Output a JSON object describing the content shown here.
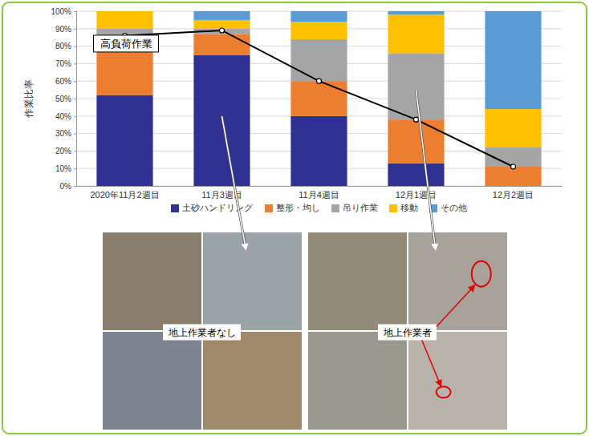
{
  "chart_data": {
    "type": "bar",
    "stacked": true,
    "y_label": "作業比率",
    "categories": [
      "2020年11月2週目",
      "11月3週目",
      "11月4週目",
      "12月1週目",
      "12月2週目"
    ],
    "series": [
      {
        "name": "土砂ハンドリング",
        "color": "#2e3192",
        "values": [
          52,
          75,
          40,
          13,
          0
        ]
      },
      {
        "name": "整形・均し",
        "color": "#ed7d31",
        "values": [
          34,
          12,
          20,
          25,
          11
        ]
      },
      {
        "name": "吊り作業",
        "color": "#a5a5a5",
        "values": [
          4,
          3,
          24,
          38,
          11
        ]
      },
      {
        "name": "移動",
        "color": "#ffc000",
        "values": [
          10,
          5,
          10,
          22,
          22
        ]
      },
      {
        "name": "その他",
        "color": "#5b9bd5",
        "values": [
          0,
          5,
          6,
          2,
          56
        ]
      },
      {
        "name": "高負荷作業",
        "type": "line",
        "color": "#000000",
        "marker": "circle",
        "values": [
          86,
          89,
          60,
          38,
          11
        ]
      }
    ],
    "ylim": [
      0,
      100
    ],
    "yticks": [
      {
        "value": 0,
        "label": "0%"
      },
      {
        "value": 10,
        "label": "10%"
      },
      {
        "value": 20,
        "label": "20%"
      },
      {
        "value": 30,
        "label": "30%"
      },
      {
        "value": 40,
        "label": "40%"
      },
      {
        "value": 50,
        "label": "50%"
      },
      {
        "value": 60,
        "label": "60%"
      },
      {
        "value": 70,
        "label": "70%"
      },
      {
        "value": 80,
        "label": "80%"
      },
      {
        "value": 90,
        "label": "90%"
      },
      {
        "value": 100,
        "label": "100%"
      }
    ],
    "grid": true,
    "legend": "bottom",
    "annotations": [
      "地上作業者なし",
      "地上作業者"
    ]
  }
}
